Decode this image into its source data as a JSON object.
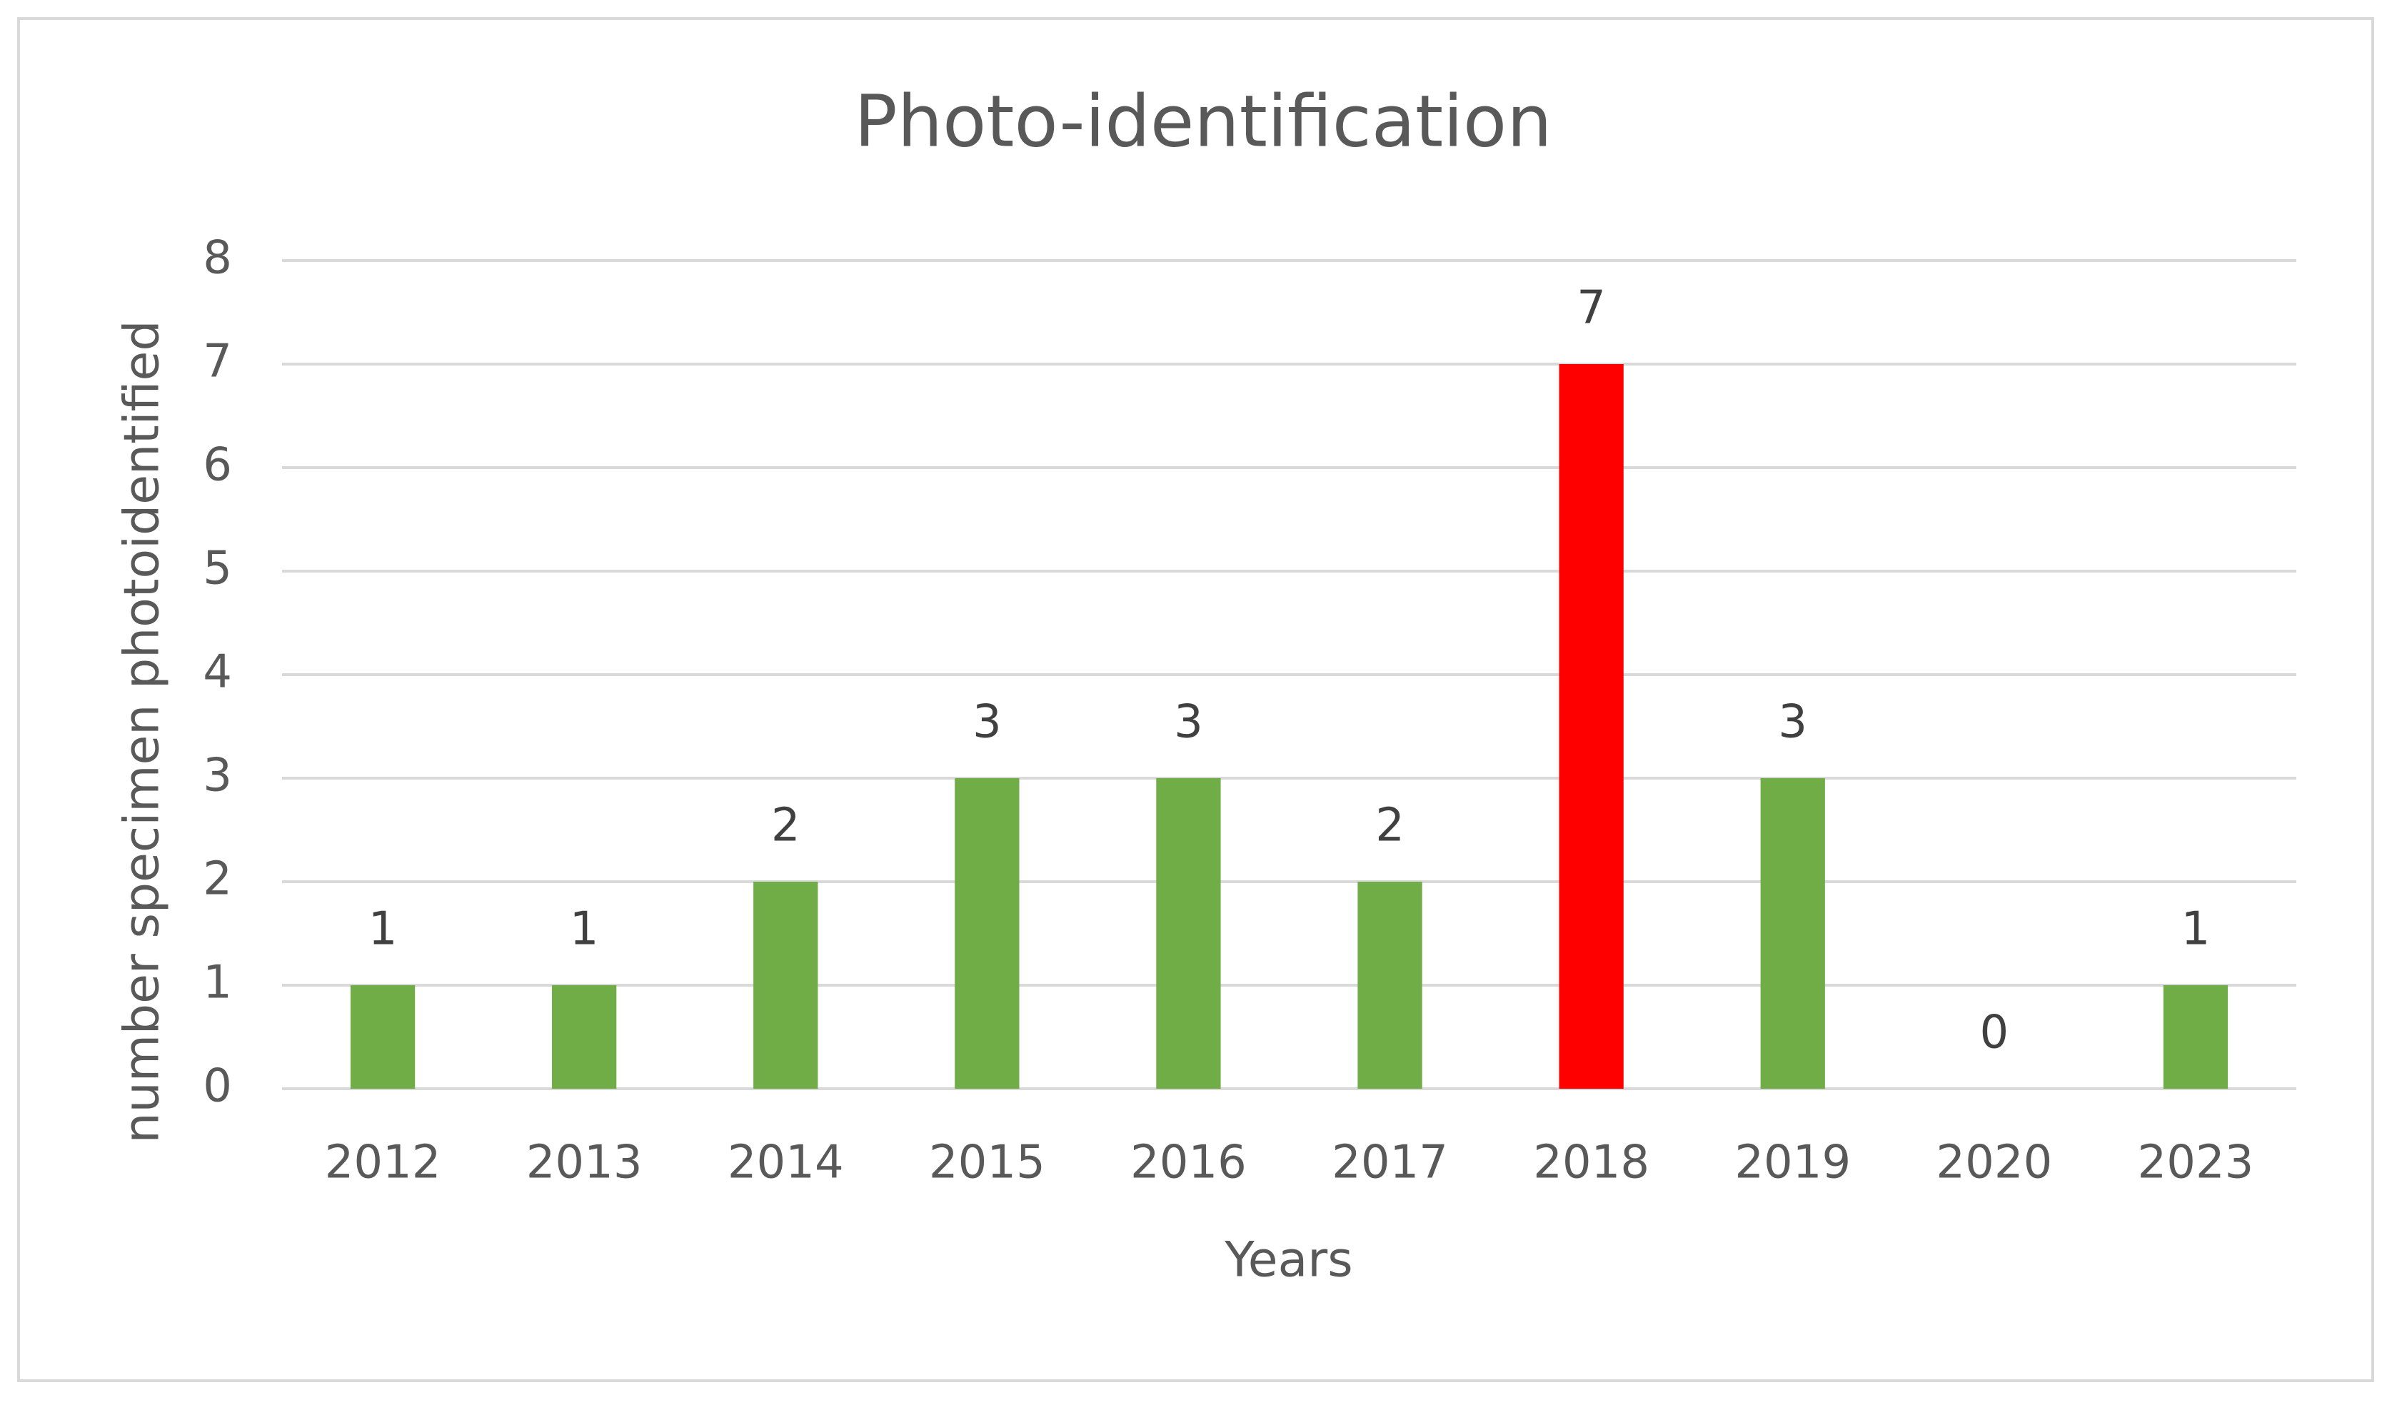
{
  "chart_data": {
    "type": "bar",
    "title": "Photo-identification",
    "x_label": "Years",
    "y_label": "number specimen photoidentified",
    "categories": [
      "2012",
      "2013",
      "2014",
      "2015",
      "2016",
      "2017",
      "2018",
      "2019",
      "2020",
      "2023"
    ],
    "values": [
      1,
      1,
      2,
      3,
      3,
      2,
      7,
      3,
      0,
      1
    ],
    "colors": [
      "#70ad47",
      "#70ad47",
      "#70ad47",
      "#70ad47",
      "#70ad47",
      "#70ad47",
      "#ff0000",
      "#70ad47",
      "#70ad47",
      "#70ad47"
    ],
    "ylim": [
      0,
      8
    ],
    "yticks": [
      0,
      1,
      2,
      3,
      4,
      5,
      6,
      7,
      8
    ],
    "grid": true,
    "data_labels": true
  }
}
